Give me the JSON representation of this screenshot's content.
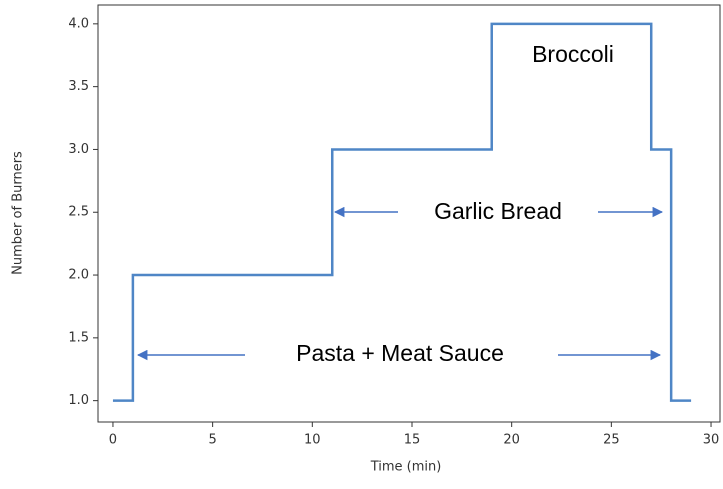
{
  "chart_data": {
    "type": "line",
    "xlabel": "Time (min)",
    "ylabel": "Number of Burners",
    "x": [
      0,
      1,
      1,
      11,
      11,
      19,
      19,
      27,
      27,
      28,
      28,
      29
    ],
    "values": [
      1,
      1,
      2,
      2,
      3,
      3,
      4,
      4,
      3,
      3,
      1,
      1
    ],
    "color": "#4f86c6",
    "xlim": [
      -0.75,
      30.45
    ],
    "ylim": [
      0.83,
      4.15
    ],
    "xticks": [
      0,
      5,
      10,
      15,
      20,
      25,
      30
    ],
    "yticks": [
      {
        "value": 1,
        "label": "1.0"
      },
      {
        "value": 1.5,
        "label": "1.5"
      },
      {
        "value": 2,
        "label": "2.0"
      },
      {
        "value": 2.5,
        "label": "2.5"
      },
      {
        "value": 3,
        "label": "3.0"
      },
      {
        "value": 3.5,
        "label": "3.5"
      },
      {
        "value": 4,
        "label": "4.0"
      }
    ],
    "grid": false,
    "annotations": [
      "Broccoli",
      "Garlic Bread",
      "Pasta + Meat Sauce"
    ]
  }
}
